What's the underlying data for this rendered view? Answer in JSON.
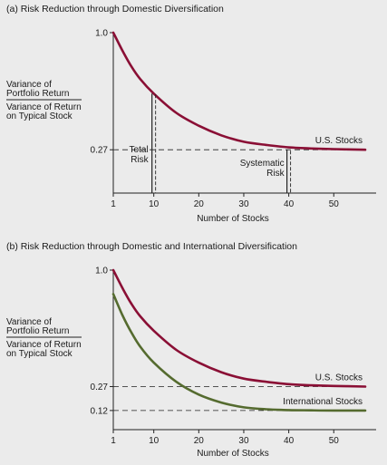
{
  "colors": {
    "background": "#ebebeb",
    "us_curve": "#8a0f35",
    "intl_curve": "#556b2f",
    "axis": "#222222"
  },
  "chart_data": [
    {
      "type": "line",
      "title": "(a) Risk Reduction through Domestic Diversification",
      "xlabel": "Number of Stocks",
      "ylabel_numerator": [
        "Variance of",
        "Portfolio Return"
      ],
      "ylabel_denominator": [
        "Variance of Return",
        "on Typical Stock"
      ],
      "xlim": [
        1,
        57
      ],
      "ylim": [
        0,
        1.0
      ],
      "x_ticks": [
        1,
        10,
        20,
        30,
        40,
        50
      ],
      "y_ticks": [
        {
          "value": 1.0,
          "label": "1.0"
        },
        {
          "value": 0.27,
          "label": "0.27"
        }
      ],
      "reference_lines": [
        {
          "y": 0.27,
          "style": "dashed"
        }
      ],
      "series": [
        {
          "name": "U.S. Stocks",
          "asymptote": 0.27,
          "x": [
            1,
            3,
            5,
            7,
            10,
            15,
            20,
            25,
            30,
            35,
            40,
            45,
            50,
            57
          ],
          "y": [
            1.0,
            0.89,
            0.79,
            0.71,
            0.62,
            0.5,
            0.42,
            0.36,
            0.32,
            0.3,
            0.285,
            0.278,
            0.274,
            0.27
          ]
        }
      ],
      "annotations": [
        {
          "text": [
            "Total",
            "Risk"
          ],
          "x": 10,
          "from_y": 0.62,
          "to_y": 0
        },
        {
          "text": [
            "Systematic",
            "Risk"
          ],
          "x": 40,
          "from_y": 0.27,
          "to_y": 0
        }
      ]
    },
    {
      "type": "line",
      "title": "(b) Risk Reduction through Domestic and International Diversification",
      "xlabel": "Number of Stocks",
      "ylabel_numerator": [
        "Variance of",
        "Portfolio Return"
      ],
      "ylabel_denominator": [
        "Variance of Return",
        "on Typical Stock"
      ],
      "xlim": [
        1,
        57
      ],
      "ylim": [
        0,
        1.0
      ],
      "x_ticks": [
        1,
        10,
        20,
        30,
        40,
        50
      ],
      "y_ticks": [
        {
          "value": 1.0,
          "label": "1.0"
        },
        {
          "value": 0.27,
          "label": "0.27"
        },
        {
          "value": 0.12,
          "label": "0.12"
        }
      ],
      "reference_lines": [
        {
          "y": 0.27,
          "style": "dashed"
        },
        {
          "y": 0.12,
          "style": "dashed"
        }
      ],
      "series": [
        {
          "name": "U.S. Stocks",
          "x": [
            1,
            3,
            5,
            7,
            10,
            15,
            20,
            25,
            30,
            35,
            40,
            45,
            50,
            57
          ],
          "y": [
            1.0,
            0.89,
            0.79,
            0.71,
            0.62,
            0.5,
            0.42,
            0.36,
            0.32,
            0.3,
            0.285,
            0.278,
            0.274,
            0.27
          ]
        },
        {
          "name": "International Stocks",
          "x": [
            1,
            3,
            5,
            7,
            10,
            15,
            20,
            25,
            30,
            35,
            40,
            45,
            50,
            57
          ],
          "y": [
            0.85,
            0.72,
            0.61,
            0.52,
            0.42,
            0.3,
            0.22,
            0.17,
            0.14,
            0.128,
            0.123,
            0.121,
            0.12,
            0.12
          ]
        }
      ]
    }
  ]
}
